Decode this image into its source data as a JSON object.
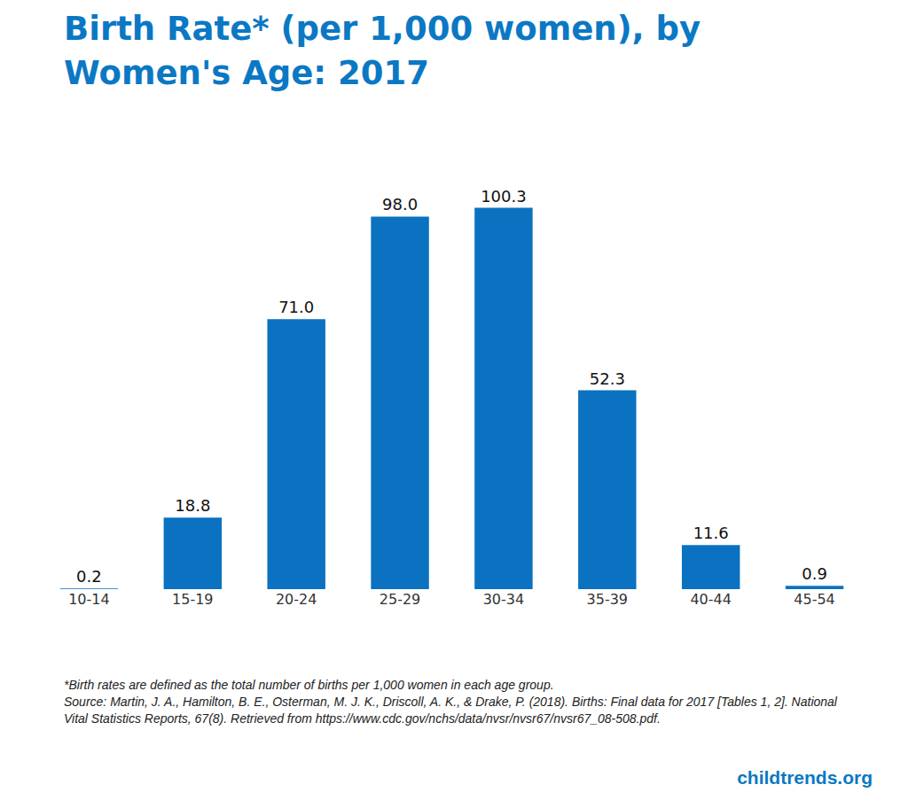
{
  "chart_data": {
    "type": "bar",
    "title": "Birth Rate* (per 1,000 women), by Women's Age: 2017",
    "categories": [
      "10-14",
      "15-19",
      "20-24",
      "25-29",
      "30-34",
      "35-39",
      "40-44",
      "45-54"
    ],
    "values": [
      0.2,
      18.8,
      71.0,
      98.0,
      100.3,
      52.3,
      11.6,
      0.9
    ],
    "value_labels": [
      "0.2",
      "18.8",
      "71.0",
      "98.0",
      "100.3",
      "52.3",
      "11.6",
      "0.9"
    ],
    "data_labels": true,
    "color": "#0a72c0",
    "ylim": [
      0,
      120
    ],
    "tick_labels": "x",
    "grid": false,
    "annotations": [
      "*Birth rates are defined as the total number of births per 1,000 women in each age group.",
      "Source: Martin, J. A., Hamilton, B. E., Osterman, M. J. K., Driscoll, A. K., & Drake, P. (2018). Births: Final data for 2017 [Tables 1, 2]. National Vital Statistics Reports, 67(8). Retrieved from https://www.cdc.gov/nchs/data/nvsr/nvsr67/nvsr67_08-508.pdf.",
      "childtrends.org"
    ]
  }
}
